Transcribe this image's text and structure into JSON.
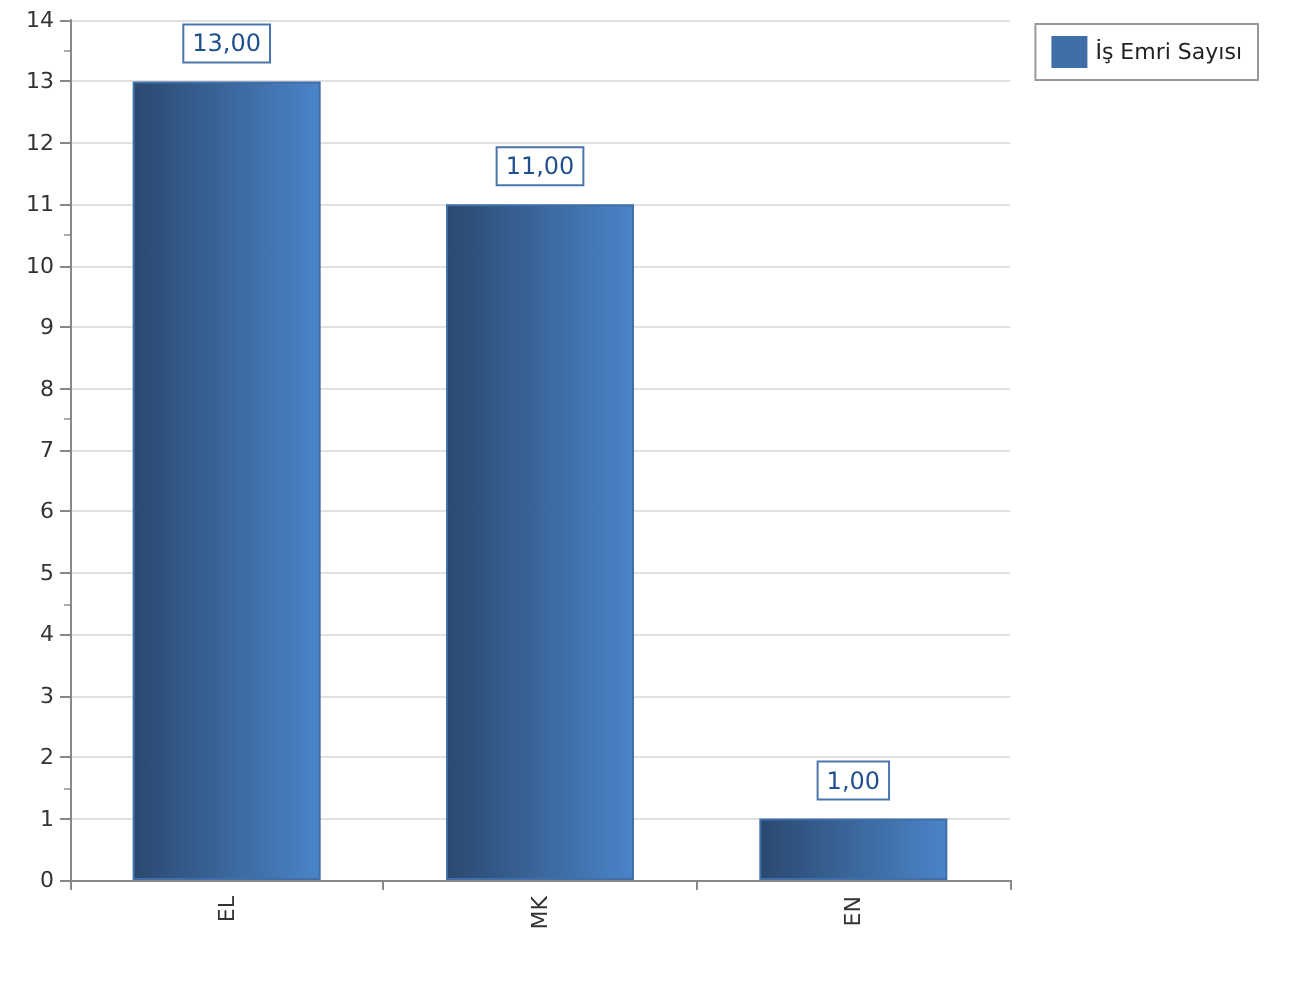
{
  "chart_data": {
    "type": "bar",
    "categories": [
      "EL",
      "MK",
      "EN"
    ],
    "series": [
      {
        "name": "İş Emri Sayısı",
        "color": "#3f6ea8",
        "values": [
          13,
          11,
          1
        ],
        "value_labels": [
          "13,00",
          "11,00",
          "1,00"
        ]
      }
    ],
    "ylim": [
      0,
      14
    ],
    "yticks": [
      0,
      1,
      2,
      3,
      4,
      5,
      6,
      7,
      8,
      9,
      10,
      11,
      12,
      13,
      14
    ],
    "grid": "y",
    "legend": "top right"
  }
}
